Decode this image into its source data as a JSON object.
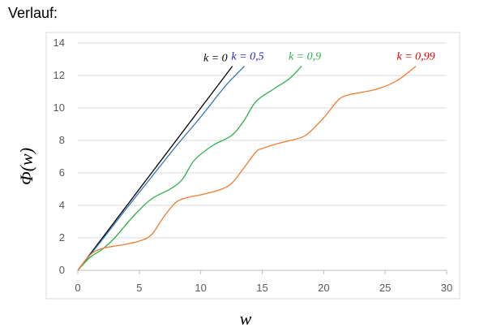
{
  "page": {
    "heading": "Verlauf:"
  },
  "chart_data": {
    "type": "line",
    "xlabel": "w",
    "ylabel": "Φ(w)",
    "xlim": [
      0,
      30
    ],
    "ylim": [
      0,
      14
    ],
    "xticks": [
      0,
      5,
      10,
      15,
      20,
      25,
      30
    ],
    "yticks": [
      0,
      2,
      4,
      6,
      8,
      10,
      12,
      14
    ],
    "grid": "horizontal",
    "legend": "inline labels at line ends",
    "series": [
      {
        "name": "k = 0",
        "color": "#000000",
        "label_color": "#000000",
        "x": [
          0,
          12.57
        ],
        "y": [
          0,
          12.57
        ]
      },
      {
        "name": "k = 0,5",
        "color": "#2e75b6",
        "label_color": "#1f1fc8",
        "x": [
          0,
          2,
          4,
          6,
          8,
          10,
          12,
          13.55
        ],
        "y": [
          0,
          1.9,
          3.85,
          5.75,
          7.65,
          9.45,
          11.35,
          12.57
        ]
      },
      {
        "name": "k = 0,9",
        "color": "#2db04b",
        "label_color": "#2db04b",
        "x": [
          0,
          1,
          2,
          3,
          4.6,
          6,
          7.5,
          8.5,
          9.5,
          11,
          12.5,
          13.5,
          14.5,
          16,
          17.2,
          18.2
        ],
        "y": [
          0,
          0.8,
          1.3,
          2.0,
          3.4,
          4.4,
          5.0,
          5.6,
          6.8,
          7.7,
          8.3,
          9.2,
          10.4,
          11.2,
          11.8,
          12.57
        ]
      },
      {
        "name": "k = 0,99",
        "color": "#ed7d31",
        "label_color": "#e00000",
        "x": [
          0,
          1,
          2,
          3.5,
          5,
          6,
          7,
          8,
          9,
          10,
          11.5,
          12.5,
          13.5,
          14.5,
          15,
          16,
          17,
          18.5,
          20,
          21.2,
          22,
          23,
          24.5,
          26,
          27.5
        ],
        "y": [
          0,
          0.95,
          1.35,
          1.55,
          1.8,
          2.2,
          3.3,
          4.2,
          4.5,
          4.65,
          4.95,
          5.35,
          6.3,
          7.3,
          7.5,
          7.75,
          7.95,
          8.3,
          9.4,
          10.5,
          10.8,
          10.95,
          11.2,
          11.7,
          12.57
        ]
      }
    ]
  }
}
